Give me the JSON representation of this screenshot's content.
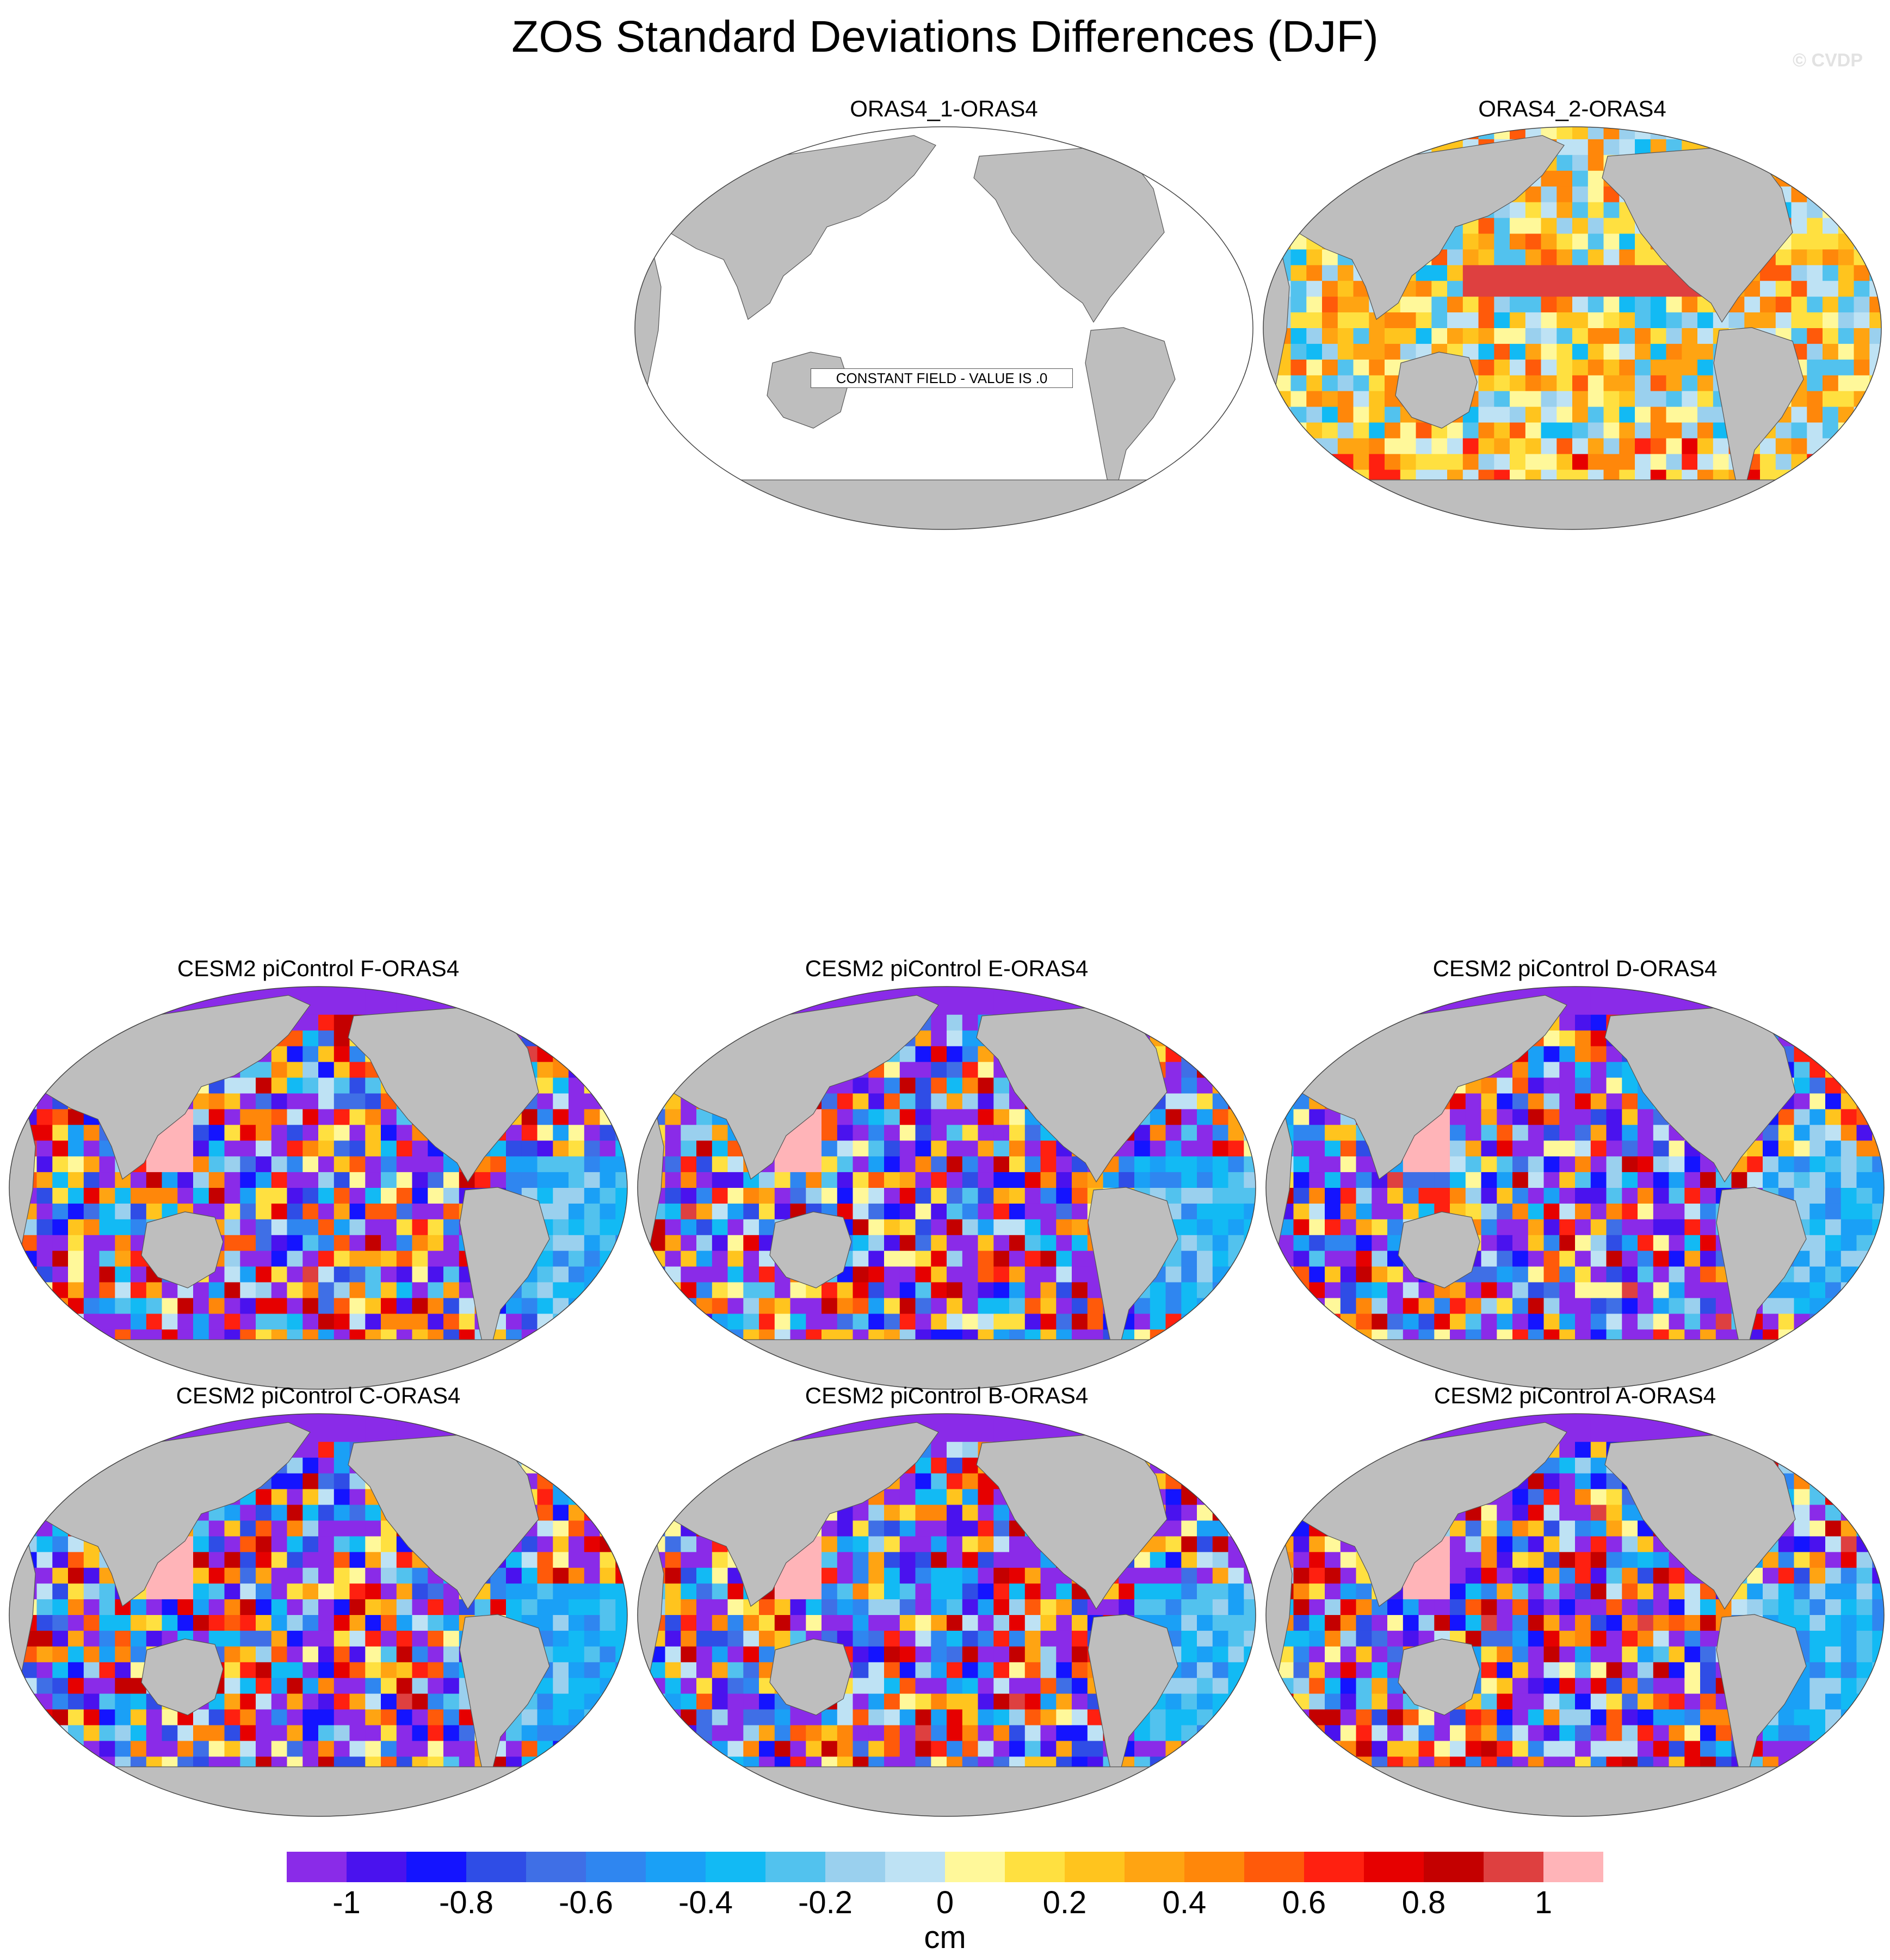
{
  "title": "ZOS Standard Deviations Differences (DJF)",
  "watermark": "© CVDP",
  "panels": [
    {
      "id": "p1",
      "title": "ORAS4_1-ORAS4",
      "field": "constant",
      "note": "CONSTANT FIELD - VALUE IS .0"
    },
    {
      "id": "p2",
      "title": "ORAS4_2-ORAS4",
      "field": "reanalysis",
      "note": ""
    },
    {
      "id": "p3",
      "title": "CESM2 piControl F-ORAS4",
      "field": "model",
      "note": ""
    },
    {
      "id": "p4",
      "title": "CESM2 piControl E-ORAS4",
      "field": "model",
      "note": ""
    },
    {
      "id": "p5",
      "title": "CESM2 piControl D-ORAS4",
      "field": "model",
      "note": ""
    },
    {
      "id": "p6",
      "title": "CESM2 piControl C-ORAS4",
      "field": "model",
      "note": ""
    },
    {
      "id": "p7",
      "title": "CESM2 piControl B-ORAS4",
      "field": "model",
      "note": ""
    },
    {
      "id": "p8",
      "title": "CESM2 piControl A-ORAS4",
      "field": "model",
      "note": ""
    }
  ],
  "colorbar": {
    "units": "cm",
    "labels": [
      "-1",
      "-0.8",
      "-0.6",
      "-0.4",
      "-0.2",
      "0",
      "0.2",
      "0.4",
      "0.6",
      "0.8",
      "1"
    ],
    "colors": [
      "#8a2be8",
      "#4a12ee",
      "#1414ff",
      "#2f4de6",
      "#3f6fe6",
      "#2f86f0",
      "#1aa0f6",
      "#12baf4",
      "#52c2ee",
      "#9ad0ee",
      "#bee2f4",
      "#fff89a",
      "#ffe040",
      "#ffc41e",
      "#ffa412",
      "#ff870a",
      "#ff5a0a",
      "#ff2010",
      "#e60000",
      "#c40000",
      "#de4040",
      "#ffb4b8"
    ]
  },
  "map_colors": {
    "land": "#bebebe",
    "coastline": "#555555",
    "ocean_constant": "#ffffff"
  }
}
